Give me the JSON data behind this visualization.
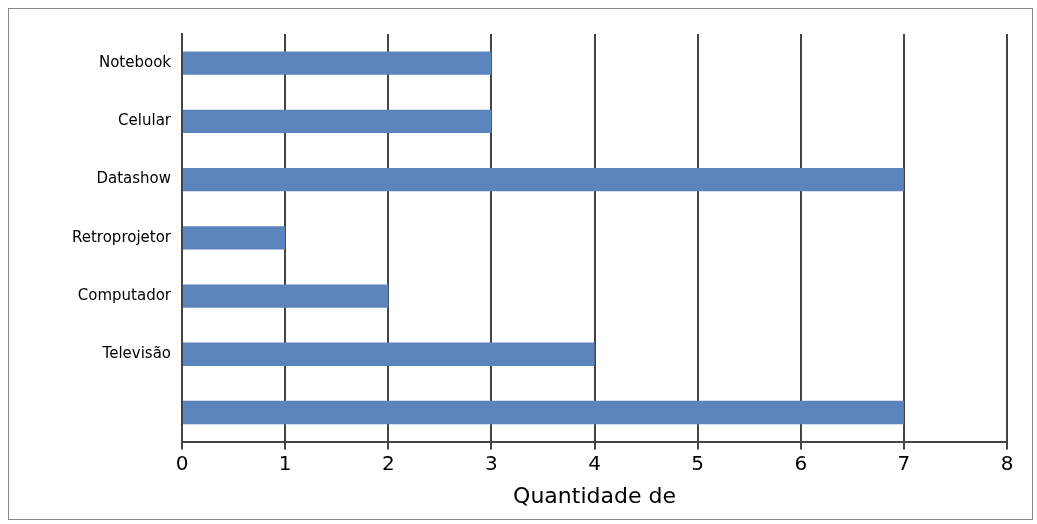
{
  "chart_data": {
    "type": "bar",
    "orientation": "horizontal",
    "xlabel": "Quantidade de",
    "categories": [
      "Notebook",
      "Celular",
      "Datashow",
      "Retroprojetor",
      "Computador",
      "Televisão",
      null
    ],
    "values": [
      3,
      3,
      7,
      1,
      2,
      4,
      7
    ],
    "color": "#5b84bc",
    "xlim": [
      0,
      8
    ],
    "xticks": [
      0,
      1,
      2,
      3,
      4,
      5,
      6,
      7,
      8
    ],
    "grid": "x",
    "legend": false
  }
}
